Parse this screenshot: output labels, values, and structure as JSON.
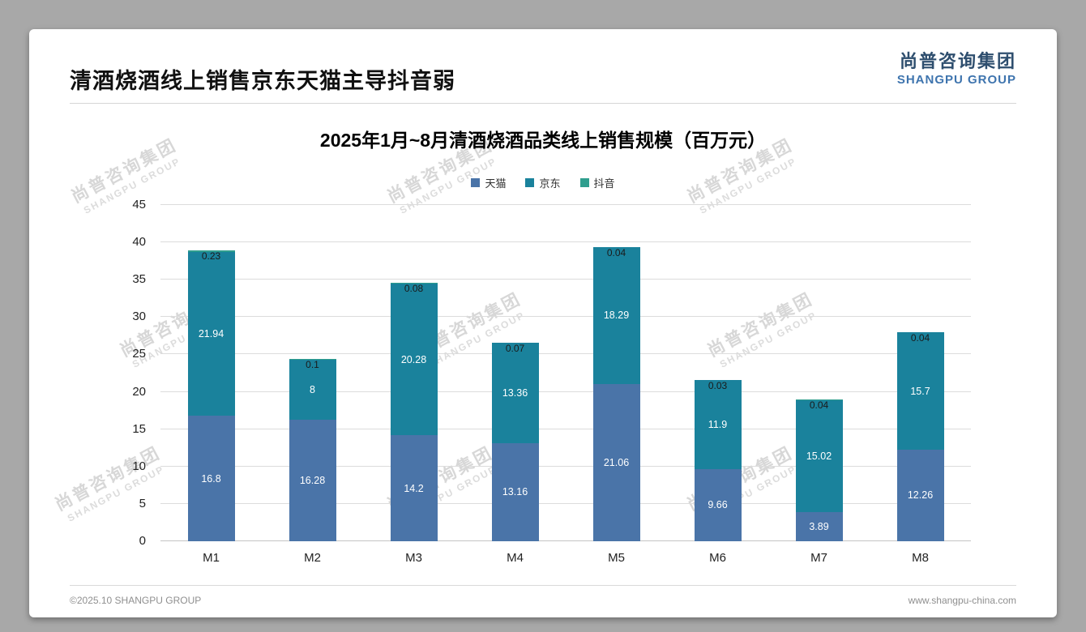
{
  "page": {
    "header_title": "清酒烧酒线上销售京东天猫主导抖音弱",
    "logo": {
      "cn": "尚普咨询集团",
      "en": "SHANGPU GROUP"
    },
    "footer": {
      "left": "©2025.10 SHANGPU GROUP",
      "right": "www.shangpu-china.com"
    },
    "watermark": {
      "cn": "尚普咨询集团",
      "en": "SHANGPU GROUP"
    }
  },
  "chart_data": {
    "type": "bar",
    "stacked": true,
    "title": "2025年1月~8月清酒烧酒品类线上销售规模（百万元）",
    "categories": [
      "M1",
      "M2",
      "M3",
      "M4",
      "M5",
      "M6",
      "M7",
      "M8"
    ],
    "series": [
      {
        "name": "天猫",
        "color": "#4a74a8",
        "values": [
          16.8,
          16.28,
          14.2,
          13.16,
          21.06,
          9.66,
          3.89,
          12.26
        ]
      },
      {
        "name": "京东",
        "color": "#1a829c",
        "values": [
          21.94,
          8,
          20.28,
          13.36,
          18.29,
          11.9,
          15.02,
          15.7
        ]
      },
      {
        "name": "抖音",
        "color": "#2f9e8e",
        "values": [
          0.23,
          0.1,
          0.08,
          0.07,
          0.04,
          0.03,
          0.04,
          0.04
        ]
      }
    ],
    "xlabel": "",
    "ylabel": "",
    "ylim": [
      0,
      45
    ],
    "ytick_step": 5,
    "grid": true,
    "legend_position": "top"
  }
}
